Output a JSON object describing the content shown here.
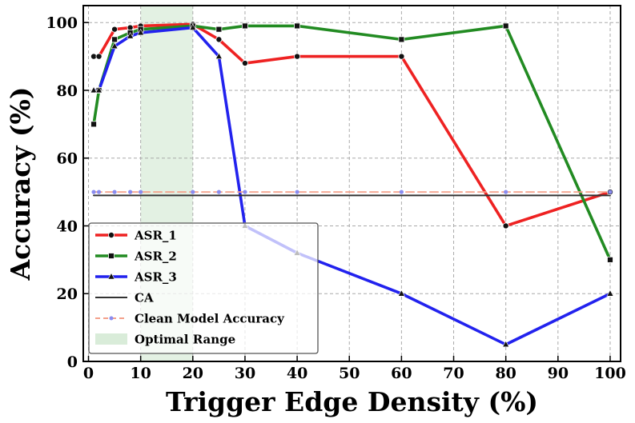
{
  "chart_data": {
    "type": "line",
    "title": "",
    "xlabel": "Trigger Edge Density (%)",
    "ylabel": "Accuracy (%)",
    "xlim": [
      -1,
      102
    ],
    "ylim": [
      0,
      105
    ],
    "xticks": [
      0,
      10,
      20,
      30,
      40,
      50,
      60,
      70,
      80,
      90,
      100
    ],
    "yticks": [
      0,
      20,
      40,
      60,
      80,
      100
    ],
    "grid": true,
    "legend_position": "lower-left",
    "shaded_region": {
      "name": "Optimal Range",
      "x": [
        10,
        20
      ],
      "color": "#d9ecd9"
    },
    "series": [
      {
        "name": "ASR_1",
        "color": "#ee2222",
        "marker": "circle",
        "x": [
          1,
          2,
          5,
          8,
          10,
          20,
          25,
          30,
          40,
          60,
          80,
          100
        ],
        "y": [
          90,
          90,
          98,
          98.5,
          99,
          99.5,
          95,
          88,
          90,
          90,
          40,
          50
        ]
      },
      {
        "name": "ASR_2",
        "color": "#228b22",
        "marker": "square",
        "x": [
          1,
          2,
          5,
          8,
          10,
          20,
          25,
          30,
          40,
          60,
          80,
          100
        ],
        "y": [
          70,
          80,
          95,
          97,
          98,
          99,
          98,
          99,
          99,
          95,
          99,
          30
        ]
      },
      {
        "name": "ASR_3",
        "color": "#2222ee",
        "marker": "triangle",
        "x": [
          1,
          2,
          5,
          8,
          10,
          20,
          25,
          30,
          40,
          60,
          80,
          100
        ],
        "y": [
          80,
          80,
          93,
          96,
          97,
          98.5,
          90,
          40,
          32,
          20,
          5,
          20
        ]
      },
      {
        "name": "CA",
        "color": "#333333",
        "marker": "line",
        "x": [
          1,
          100
        ],
        "y": [
          49,
          49
        ]
      },
      {
        "name": "Clean Model Accuracy",
        "color": "#f4a08a",
        "marker": "dash-dot",
        "x": [
          1,
          2,
          5,
          8,
          10,
          20,
          25,
          30,
          40,
          60,
          80,
          100
        ],
        "y": [
          50,
          50,
          50,
          50,
          50,
          50,
          50,
          50,
          50,
          50,
          50,
          50
        ]
      }
    ]
  },
  "legend": {
    "items": [
      {
        "label": "ASR_1",
        "color": "#ee2222",
        "style": "solid-circle"
      },
      {
        "label": "ASR_2",
        "color": "#228b22",
        "style": "solid-square"
      },
      {
        "label": "ASR_3",
        "color": "#2222ee",
        "style": "solid-triangle"
      },
      {
        "label": "CA",
        "color": "#333333",
        "style": "thin-line"
      },
      {
        "label": "Clean Model Accuracy",
        "color": "#f4a08a",
        "style": "dashed"
      },
      {
        "label": "Optimal Range",
        "color": "#d9ecd9",
        "style": "patch"
      }
    ]
  }
}
